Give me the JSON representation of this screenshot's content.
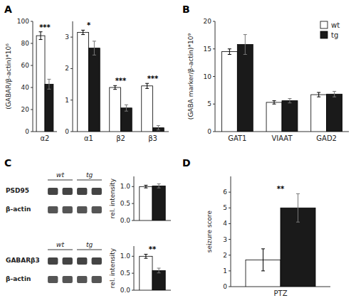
{
  "chart_data": [
    {
      "type": "bar",
      "title": "A",
      "categories": [
        "α2"
      ],
      "series": [
        {
          "name": "wt",
          "color": "#ffffff",
          "values": [
            87
          ],
          "errors": [
            3.5
          ]
        },
        {
          "name": "tg",
          "color": "#1a1a1a",
          "values": [
            43
          ],
          "errors": [
            4.5
          ]
        }
      ],
      "significance": [
        "***"
      ],
      "y_label": "(GABAR/β-actin)*10⁶",
      "ylim": [
        0,
        100
      ],
      "yticks": [
        0,
        20,
        40,
        60,
        80,
        100
      ]
    },
    {
      "type": "bar",
      "categories": [
        "α1",
        "β2",
        "β3"
      ],
      "series": [
        {
          "name": "wt",
          "color": "#ffffff",
          "values": [
            3.15,
            1.4,
            1.45
          ],
          "errors": [
            0.07,
            0.06,
            0.08
          ]
        },
        {
          "name": "tg",
          "color": "#1a1a1a",
          "values": [
            2.65,
            0.75,
            0.12
          ],
          "errors": [
            0.22,
            0.1,
            0.07
          ]
        }
      ],
      "significance": [
        "*",
        "***",
        "***"
      ],
      "ylim": [
        0,
        3.5
      ],
      "yticks": [
        0,
        1,
        2,
        3
      ]
    },
    {
      "type": "bar",
      "title": "B",
      "categories": [
        "GAT1",
        "VIAAT",
        "GAD2"
      ],
      "series": [
        {
          "name": "wt",
          "color": "#ffffff",
          "values": [
            14.5,
            5.3,
            6.7
          ],
          "errors": [
            0.5,
            0.3,
            0.4
          ]
        },
        {
          "name": "tg",
          "color": "#1a1a1a",
          "values": [
            15.8,
            5.6,
            6.8
          ],
          "errors": [
            1.8,
            0.4,
            0.5
          ]
        }
      ],
      "y_label": "(GABA marker/β-actin)*10⁹",
      "ylim": [
        0,
        20
      ],
      "yticks": [
        0,
        5,
        10,
        15,
        20
      ],
      "legend": "upper right"
    },
    {
      "type": "bar",
      "title": "C",
      "categories": [
        null
      ],
      "series": [
        {
          "name": "wt",
          "color": "#ffffff",
          "values": [
            1.0
          ],
          "errors": [
            0.04
          ]
        },
        {
          "name": "tg",
          "color": "#1a1a1a",
          "values": [
            1.02
          ],
          "errors": [
            0.06
          ]
        }
      ],
      "annotations": [
        "wt",
        "tg",
        "PSD95",
        "β-actin"
      ],
      "y_label": "rel. intensity",
      "ylim": [
        0,
        1.3
      ],
      "yticks": [
        {
          "value": 0,
          "label": "0.0"
        },
        0.5,
        {
          "value": 1.0,
          "label": "1.0"
        }
      ]
    },
    {
      "type": "bar",
      "categories": [
        null
      ],
      "series": [
        {
          "name": "wt",
          "color": "#ffffff",
          "values": [
            1.0
          ],
          "errors": [
            0.06
          ]
        },
        {
          "name": "tg",
          "color": "#1a1a1a",
          "values": [
            0.58
          ],
          "errors": [
            0.07
          ]
        }
      ],
      "significance": [
        "**"
      ],
      "annotations": [
        "wt",
        "tg",
        "GABARβ3",
        "β-actin"
      ],
      "y_label": "rel. intensity",
      "ylim": [
        0,
        1.3
      ],
      "yticks": [
        {
          "value": 0,
          "label": "0.0"
        },
        0.5,
        {
          "value": 1.0,
          "label": "1.0"
        }
      ]
    },
    {
      "type": "bar",
      "title": "D",
      "categories": [
        "PTZ"
      ],
      "series": [
        {
          "name": "wt",
          "color": "#ffffff",
          "values": [
            1.7
          ],
          "errors": [
            0.7
          ]
        },
        {
          "name": "tg",
          "color": "#1a1a1a",
          "values": [
            5.0
          ],
          "errors": [
            0.9
          ]
        }
      ],
      "significance": [
        "**"
      ],
      "y_label": "seizure score",
      "ylim": [
        0,
        7
      ],
      "yticks": [
        0,
        1,
        2,
        3,
        4,
        5,
        6
      ]
    }
  ]
}
